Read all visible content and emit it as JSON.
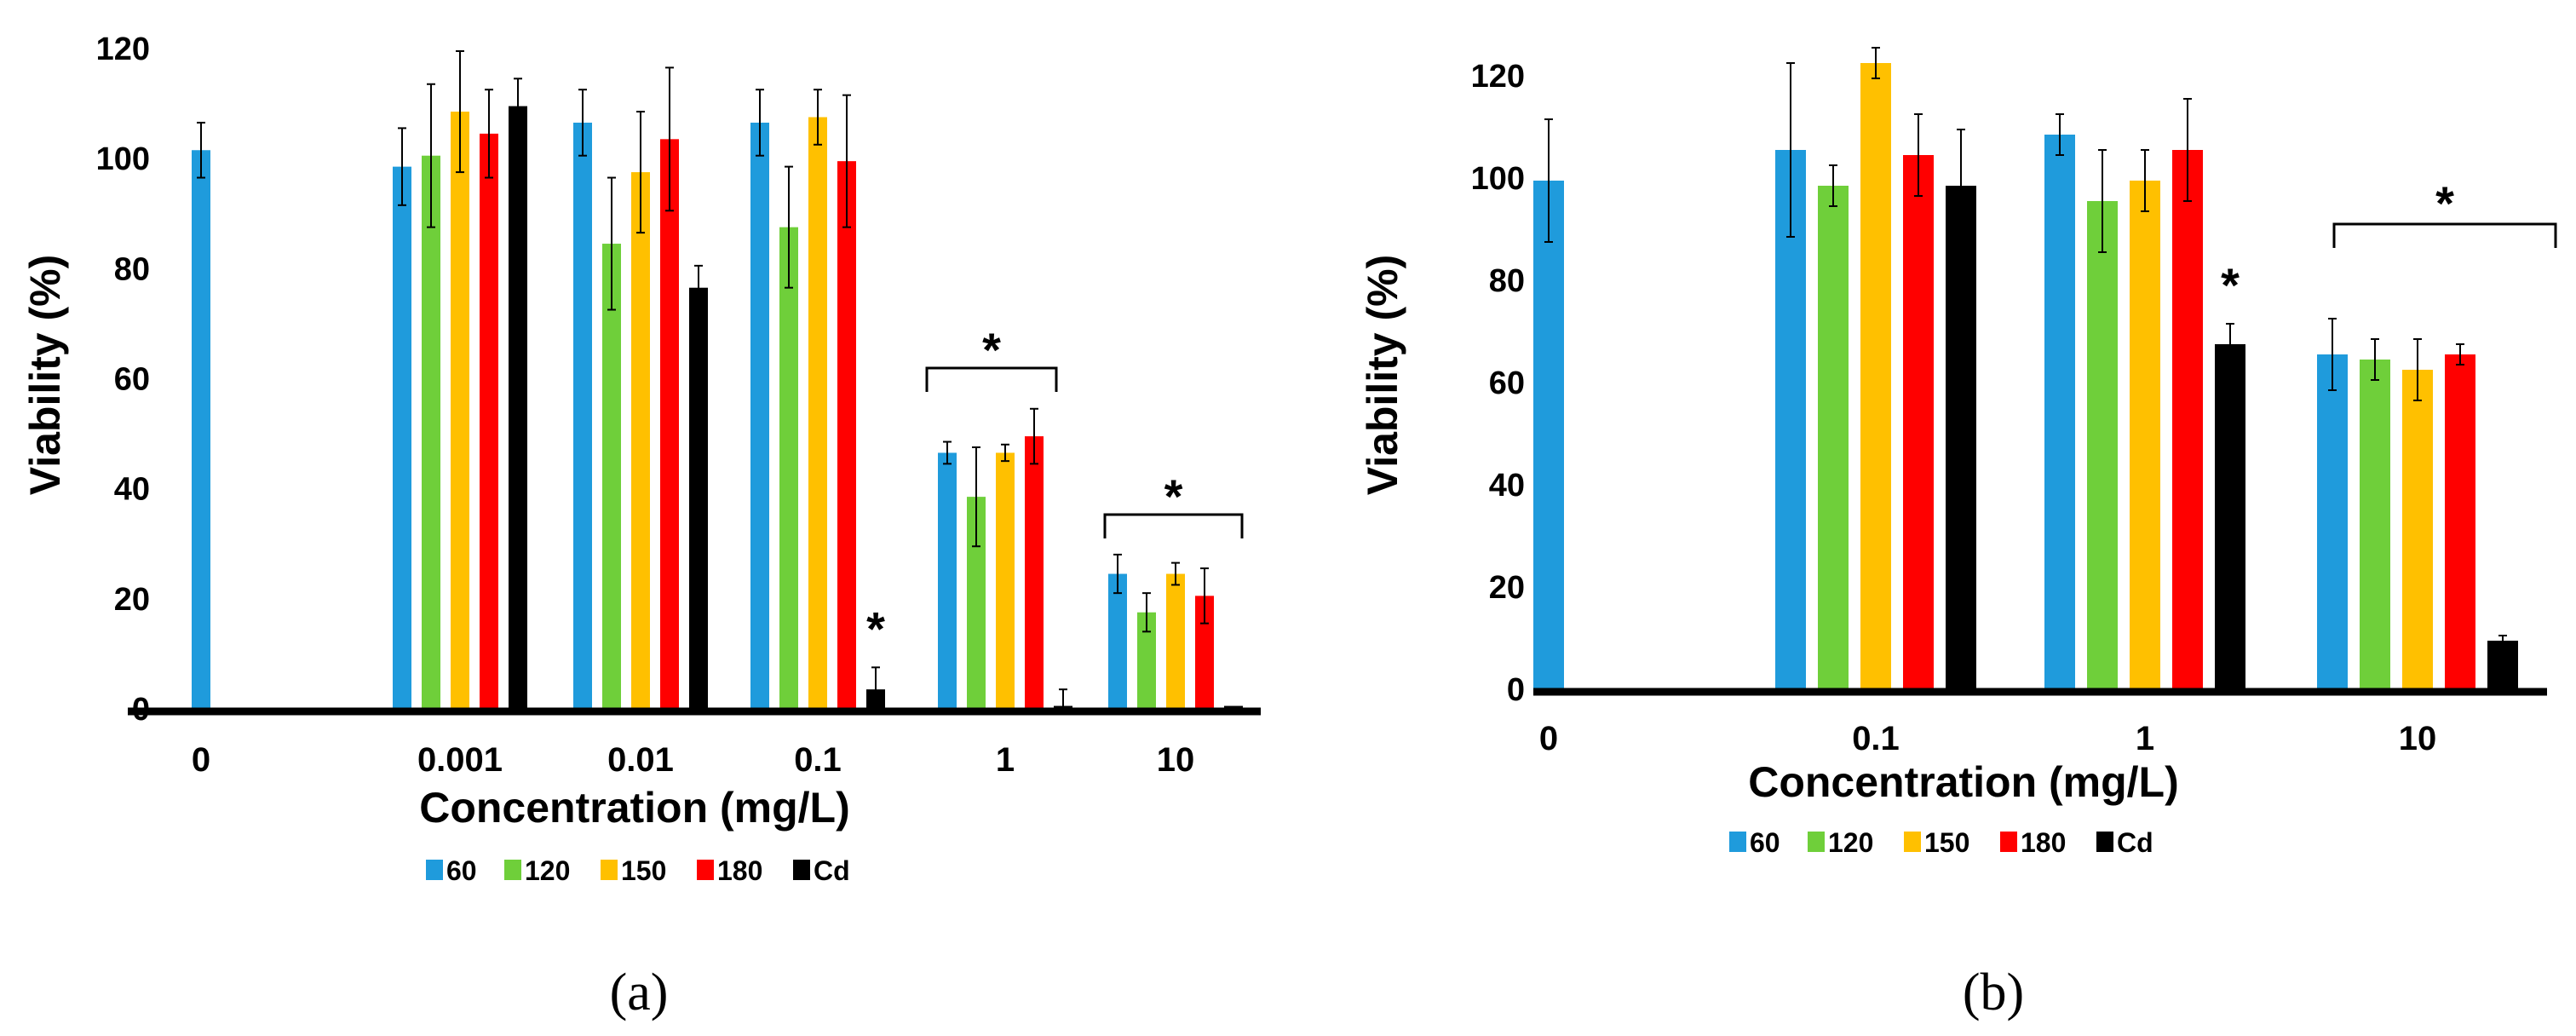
{
  "chart_data": [
    {
      "type": "bar",
      "panel_label": "(a)",
      "xlabel": "Concentration (mg/L)",
      "ylabel": "Viability (%)",
      "ylim": [
        0,
        120
      ],
      "yticks": [
        "0",
        "20",
        "40",
        "60",
        "80",
        "100",
        "120"
      ],
      "categories": [
        "0",
        "0.001",
        "0.01",
        "0.1",
        "1",
        "10"
      ],
      "legend_position": "bottom",
      "grid": false,
      "series": [
        {
          "name": "60",
          "color": "#1F9BDC",
          "values": [
            102,
            99,
            107,
            107,
            47,
            25
          ],
          "errors": [
            5,
            7,
            6,
            6,
            2,
            3.5
          ]
        },
        {
          "name": "120",
          "color": "#6FCF3A",
          "values": [
            null,
            101,
            85,
            88,
            39,
            18
          ],
          "errors": [
            null,
            13,
            12,
            11,
            9,
            3.5
          ]
        },
        {
          "name": "150",
          "color": "#FFC000",
          "values": [
            null,
            109,
            98,
            108,
            47,
            25
          ],
          "errors": [
            null,
            11,
            11,
            5,
            1.5,
            2
          ]
        },
        {
          "name": "180",
          "color": "#FF0000",
          "values": [
            null,
            105,
            104,
            100,
            50,
            21
          ],
          "errors": [
            null,
            8,
            13,
            12,
            5,
            5
          ]
        },
        {
          "name": "Cd",
          "color": "#000000",
          "values": [
            null,
            110,
            77,
            4,
            1,
            1
          ],
          "errors": [
            null,
            5,
            4,
            4,
            3,
            0
          ]
        }
      ],
      "annotations": [
        {
          "text": "*",
          "type": "star",
          "category": "0.1",
          "series": "Cd"
        },
        {
          "text": "*",
          "type": "bracket",
          "category": "1"
        },
        {
          "text": "*",
          "type": "bracket",
          "category": "10"
        }
      ]
    },
    {
      "type": "bar",
      "panel_label": "(b)",
      "xlabel": "Concentration (mg/L)",
      "ylabel": "Viability (%)",
      "ylim": [
        0,
        120
      ],
      "yticks": [
        "0",
        "20",
        "40",
        "60",
        "80",
        "100",
        "120"
      ],
      "categories": [
        "0",
        "0.1",
        "1",
        "10"
      ],
      "legend_position": "bottom",
      "grid": false,
      "series": [
        {
          "name": "60",
          "color": "#1F9BDC",
          "values": [
            100,
            106,
            109,
            66
          ],
          "errors": [
            12,
            17,
            4,
            7
          ]
        },
        {
          "name": "120",
          "color": "#6FCF3A",
          "values": [
            null,
            99,
            96,
            65
          ],
          "errors": [
            null,
            4,
            10,
            4
          ]
        },
        {
          "name": "150",
          "color": "#FFC000",
          "values": [
            null,
            123,
            100,
            63
          ],
          "errors": [
            null,
            3,
            6,
            6
          ]
        },
        {
          "name": "180",
          "color": "#FF0000",
          "values": [
            null,
            105,
            106,
            66
          ],
          "errors": [
            null,
            8,
            10,
            2
          ]
        },
        {
          "name": "Cd",
          "color": "#000000",
          "values": [
            null,
            99,
            68,
            10
          ],
          "errors": [
            null,
            11,
            4,
            1
          ]
        }
      ],
      "annotations": [
        {
          "text": "*",
          "type": "star",
          "category": "1",
          "series": "Cd"
        },
        {
          "text": "*",
          "type": "bracket",
          "category": "10"
        }
      ]
    }
  ]
}
